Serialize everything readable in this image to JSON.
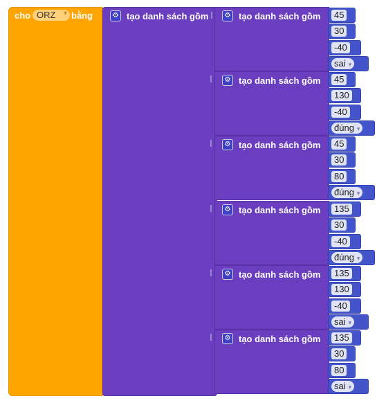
{
  "set_block": {
    "prefix": "cho",
    "variable": "ORZ",
    "suffix": "bằng"
  },
  "list_label": "tạo danh sách gồm",
  "sublists": [
    {
      "items": [
        "45",
        "30",
        "-40"
      ],
      "bool": "sai"
    },
    {
      "items": [
        "45",
        "130",
        "-40"
      ],
      "bool": "đúng"
    },
    {
      "items": [
        "45",
        "30",
        "80"
      ],
      "bool": "đúng"
    },
    {
      "items": [
        "135",
        "30",
        "-40"
      ],
      "bool": "đúng"
    },
    {
      "items": [
        "135",
        "130",
        "-40"
      ],
      "bool": "sai"
    },
    {
      "items": [
        "135",
        "30",
        "80"
      ],
      "bool": "sai"
    }
  ],
  "icons": {
    "mutator": "gear-icon",
    "dropdown": "dropdown-arrow-icon"
  },
  "colors": {
    "set_block": "#FFA400",
    "list_block": "#6A3EBE",
    "value_block": "#4455CC"
  }
}
